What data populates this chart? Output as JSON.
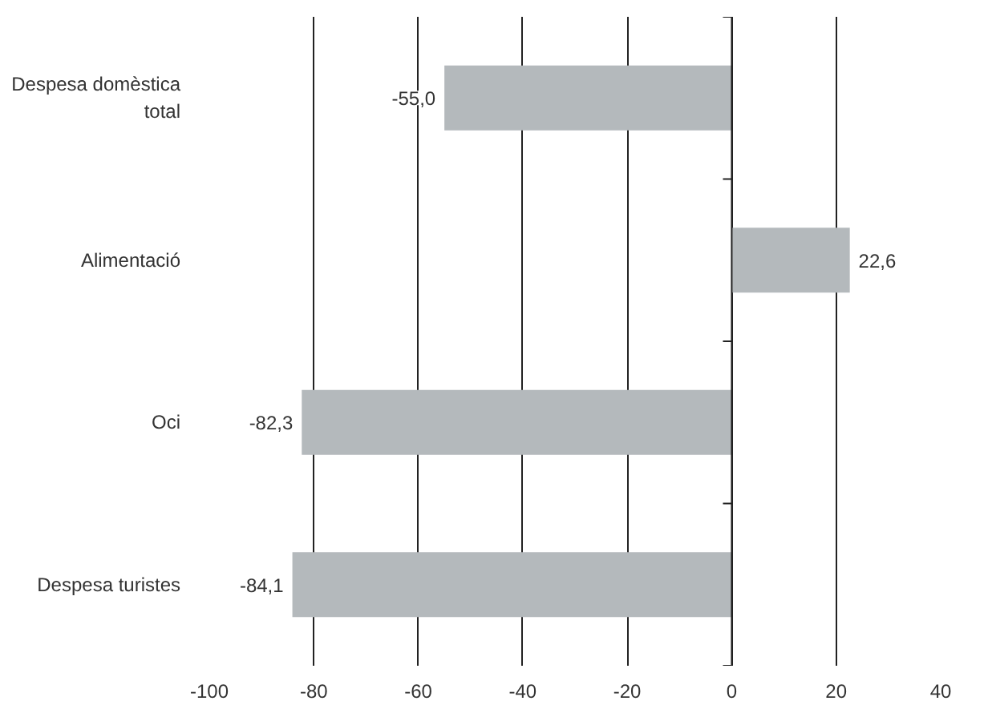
{
  "chart_data": {
    "type": "bar",
    "orientation": "horizontal",
    "categories": [
      "Despesa domèstica total",
      "Alimentació",
      "Oci",
      "Despesa turistes"
    ],
    "values": [
      -55.0,
      22.6,
      -82.3,
      -84.1
    ],
    "value_labels": [
      "-55,0",
      "22,6",
      "-82,3",
      "-84,1"
    ],
    "color": "#b4b9bc",
    "xlim": [
      -100,
      40
    ],
    "xticks": [
      -100,
      -80,
      -60,
      -40,
      -20,
      0,
      20,
      40
    ],
    "grid": "x"
  }
}
